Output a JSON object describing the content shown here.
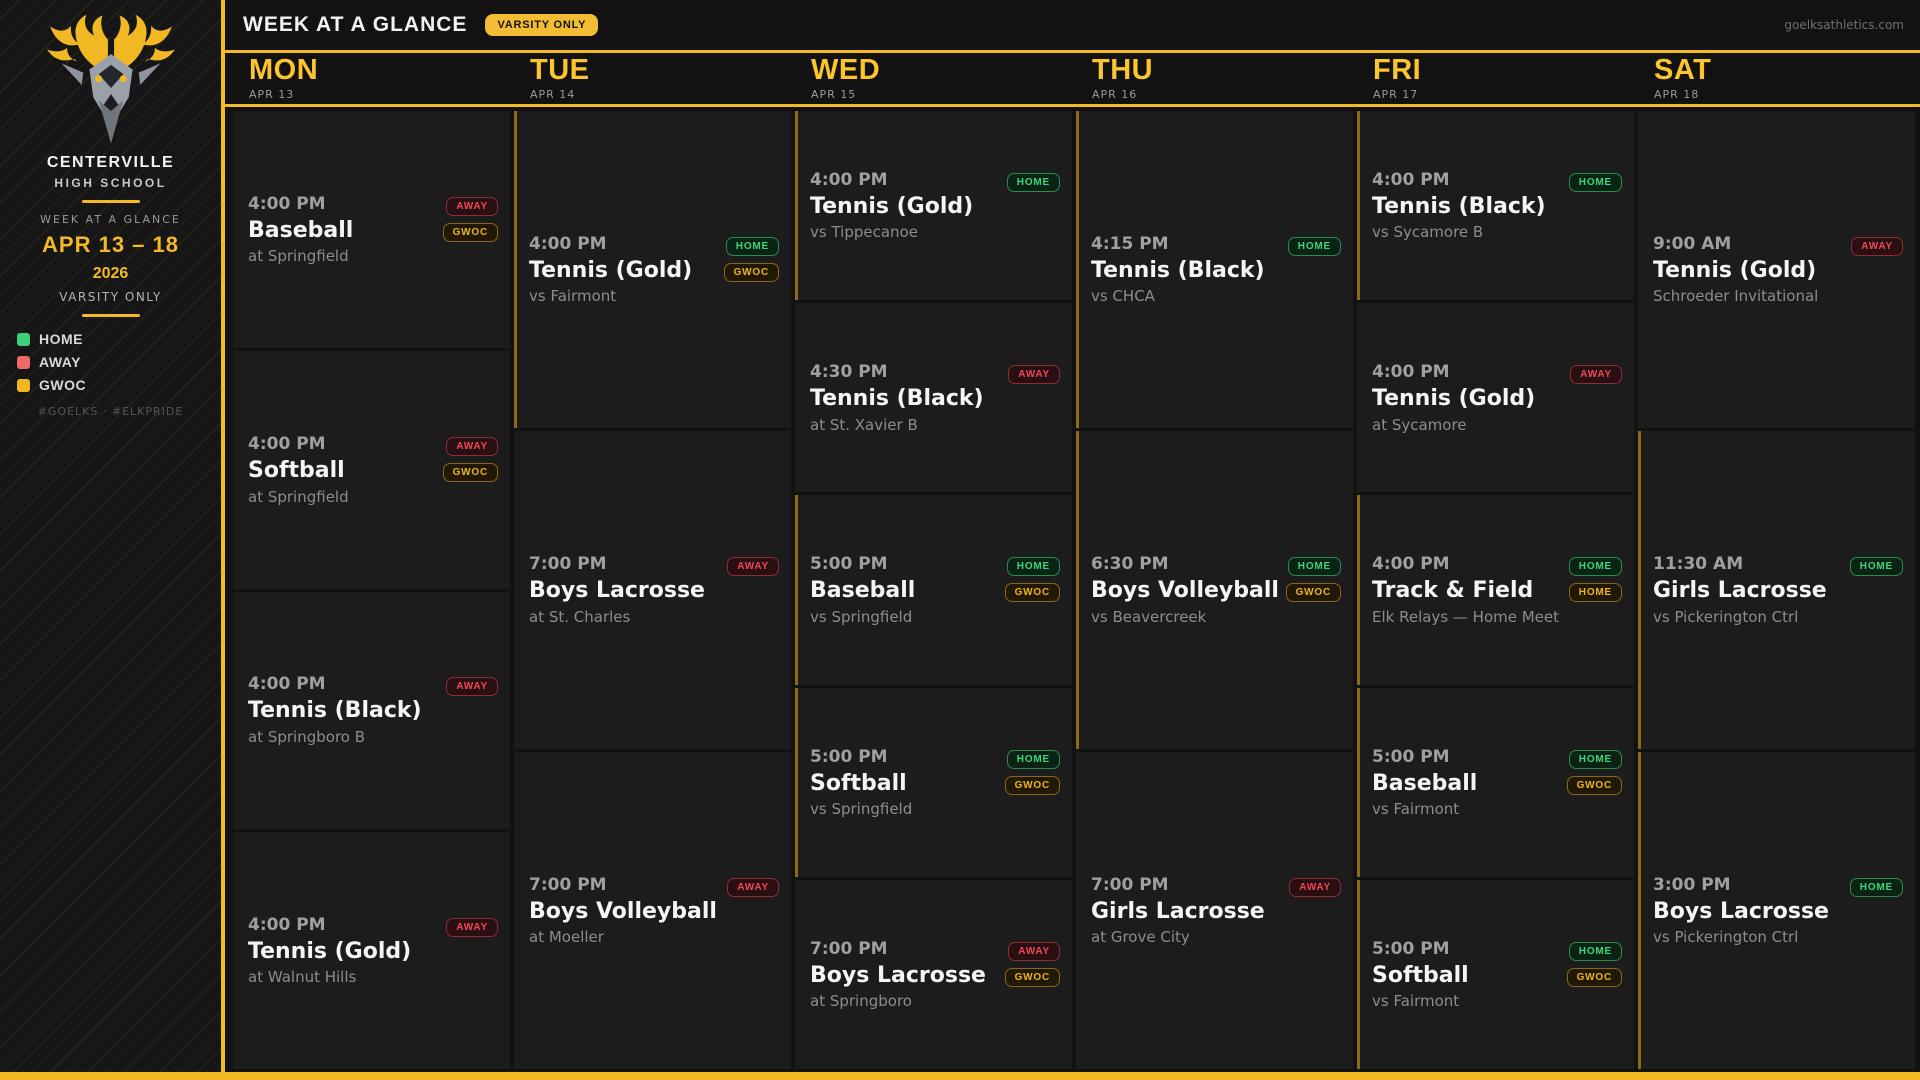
{
  "colors": {
    "accent_gold": "#f4ba25",
    "home_green": "#3ed47d",
    "away_red": "#ee4956",
    "gwoc_gold": "#eeb31f",
    "card_bg": "#1c1c1c",
    "page_bg": "#121212"
  },
  "sidebar": {
    "school_name": "CENTERVILLE",
    "school_type": "HIGH SCHOOL",
    "subtitle": "WEEK AT A GLANCE",
    "date_range": "APR 13 – 18",
    "year": "2026",
    "scope": "VARSITY ONLY",
    "legend": [
      {
        "label": "HOME",
        "color": "#3ecf7a"
      },
      {
        "label": "AWAY",
        "color": "#ef6b6b"
      },
      {
        "label": "GWOC",
        "color": "#f2b61e"
      }
    ],
    "hashtags": "#GOELKS · #ELKPRIDE"
  },
  "header": {
    "title": "WEEK AT A GLANCE",
    "badge": "VARSITY ONLY",
    "site_url": "goelksathletics.com"
  },
  "days": [
    {
      "name": "MON",
      "date": "APR 13",
      "events": [
        {
          "time": "4:00 PM",
          "title": "Baseball",
          "location": "at Springfield",
          "home_accent": false,
          "badges": [
            {
              "label": "AWAY",
              "style": "away"
            },
            {
              "label": "GWOC",
              "style": "gwoc"
            }
          ]
        },
        {
          "time": "4:00 PM",
          "title": "Softball",
          "location": "at Springfield",
          "home_accent": false,
          "badges": [
            {
              "label": "AWAY",
              "style": "away"
            },
            {
              "label": "GWOC",
              "style": "gwoc"
            }
          ]
        },
        {
          "time": "4:00 PM",
          "title": "Tennis (Black)",
          "location": "at Springboro B",
          "home_accent": false,
          "badges": [
            {
              "label": "AWAY",
              "style": "away"
            }
          ]
        },
        {
          "time": "4:00 PM",
          "title": "Tennis (Gold)",
          "location": "at Walnut Hills",
          "home_accent": false,
          "badges": [
            {
              "label": "AWAY",
              "style": "away"
            }
          ]
        }
      ]
    },
    {
      "name": "TUE",
      "date": "APR 14",
      "events": [
        {
          "time": "4:00 PM",
          "title": "Tennis (Gold)",
          "location": "vs Fairmont",
          "home_accent": true,
          "badges": [
            {
              "label": "HOME",
              "style": "home"
            },
            {
              "label": "GWOC",
              "style": "gwoc"
            }
          ]
        },
        {
          "time": "7:00 PM",
          "title": "Boys Lacrosse",
          "location": "at St. Charles",
          "home_accent": false,
          "badges": [
            {
              "label": "AWAY",
              "style": "away"
            }
          ]
        },
        {
          "time": "7:00 PM",
          "title": "Boys Volleyball",
          "location": "at Moeller",
          "home_accent": false,
          "badges": [
            {
              "label": "AWAY",
              "style": "away"
            }
          ]
        }
      ]
    },
    {
      "name": "WED",
      "date": "APR 15",
      "events": [
        {
          "time": "4:00 PM",
          "title": "Tennis (Gold)",
          "location": "vs Tippecanoe",
          "home_accent": true,
          "badges": [
            {
              "label": "HOME",
              "style": "home"
            }
          ]
        },
        {
          "time": "4:30 PM",
          "title": "Tennis (Black)",
          "location": "at St. Xavier B",
          "home_accent": false,
          "badges": [
            {
              "label": "AWAY",
              "style": "away"
            }
          ]
        },
        {
          "time": "5:00 PM",
          "title": "Baseball",
          "location": "vs Springfield",
          "home_accent": true,
          "badges": [
            {
              "label": "HOME",
              "style": "home"
            },
            {
              "label": "GWOC",
              "style": "gwoc"
            }
          ]
        },
        {
          "time": "5:00 PM",
          "title": "Softball",
          "location": "vs Springfield",
          "home_accent": true,
          "badges": [
            {
              "label": "HOME",
              "style": "home"
            },
            {
              "label": "GWOC",
              "style": "gwoc"
            }
          ]
        },
        {
          "time": "7:00 PM",
          "title": "Boys Lacrosse",
          "location": "at Springboro",
          "home_accent": false,
          "badges": [
            {
              "label": "AWAY",
              "style": "away"
            },
            {
              "label": "GWOC",
              "style": "gwoc"
            }
          ]
        }
      ]
    },
    {
      "name": "THU",
      "date": "APR 16",
      "events": [
        {
          "time": "4:15 PM",
          "title": "Tennis (Black)",
          "location": "vs CHCA",
          "home_accent": true,
          "badges": [
            {
              "label": "HOME",
              "style": "home"
            }
          ]
        },
        {
          "time": "6:30 PM",
          "title": "Boys Volleyball",
          "location": "vs Beavercreek",
          "home_accent": true,
          "badges": [
            {
              "label": "HOME",
              "style": "home"
            },
            {
              "label": "GWOC",
              "style": "gwoc"
            }
          ]
        },
        {
          "time": "7:00 PM",
          "title": "Girls Lacrosse",
          "location": "at Grove City",
          "home_accent": false,
          "badges": [
            {
              "label": "AWAY",
              "style": "away"
            }
          ]
        }
      ]
    },
    {
      "name": "FRI",
      "date": "APR 17",
      "events": [
        {
          "time": "4:00 PM",
          "title": "Tennis (Black)",
          "location": "vs Sycamore B",
          "home_accent": true,
          "badges": [
            {
              "label": "HOME",
              "style": "home"
            }
          ]
        },
        {
          "time": "4:00 PM",
          "title": "Tennis (Gold)",
          "location": "at Sycamore",
          "home_accent": false,
          "badges": [
            {
              "label": "AWAY",
              "style": "away"
            }
          ]
        },
        {
          "time": "4:00 PM",
          "title": "Track & Field",
          "location": "Elk Relays — Home Meet",
          "home_accent": true,
          "badges": [
            {
              "label": "HOME",
              "style": "home"
            },
            {
              "label": "HOME",
              "style": "gwoc"
            }
          ]
        },
        {
          "time": "5:00 PM",
          "title": "Baseball",
          "location": "vs Fairmont",
          "home_accent": true,
          "badges": [
            {
              "label": "HOME",
              "style": "home"
            },
            {
              "label": "GWOC",
              "style": "gwoc"
            }
          ]
        },
        {
          "time": "5:00 PM",
          "title": "Softball",
          "location": "vs Fairmont",
          "home_accent": true,
          "badges": [
            {
              "label": "HOME",
              "style": "home"
            },
            {
              "label": "GWOC",
              "style": "gwoc"
            }
          ]
        }
      ]
    },
    {
      "name": "SAT",
      "date": "APR 18",
      "events": [
        {
          "time": "9:00 AM",
          "title": "Tennis (Gold)",
          "location": "Schroeder Invitational",
          "home_accent": false,
          "badges": [
            {
              "label": "AWAY",
              "style": "away"
            }
          ]
        },
        {
          "time": "11:30 AM",
          "title": "Girls Lacrosse",
          "location": "vs Pickerington Ctrl",
          "home_accent": true,
          "badges": [
            {
              "label": "HOME",
              "style": "home"
            }
          ]
        },
        {
          "time": "3:00 PM",
          "title": "Boys Lacrosse",
          "location": "vs Pickerington Ctrl",
          "home_accent": true,
          "badges": [
            {
              "label": "HOME",
              "style": "home"
            }
          ]
        }
      ]
    }
  ]
}
